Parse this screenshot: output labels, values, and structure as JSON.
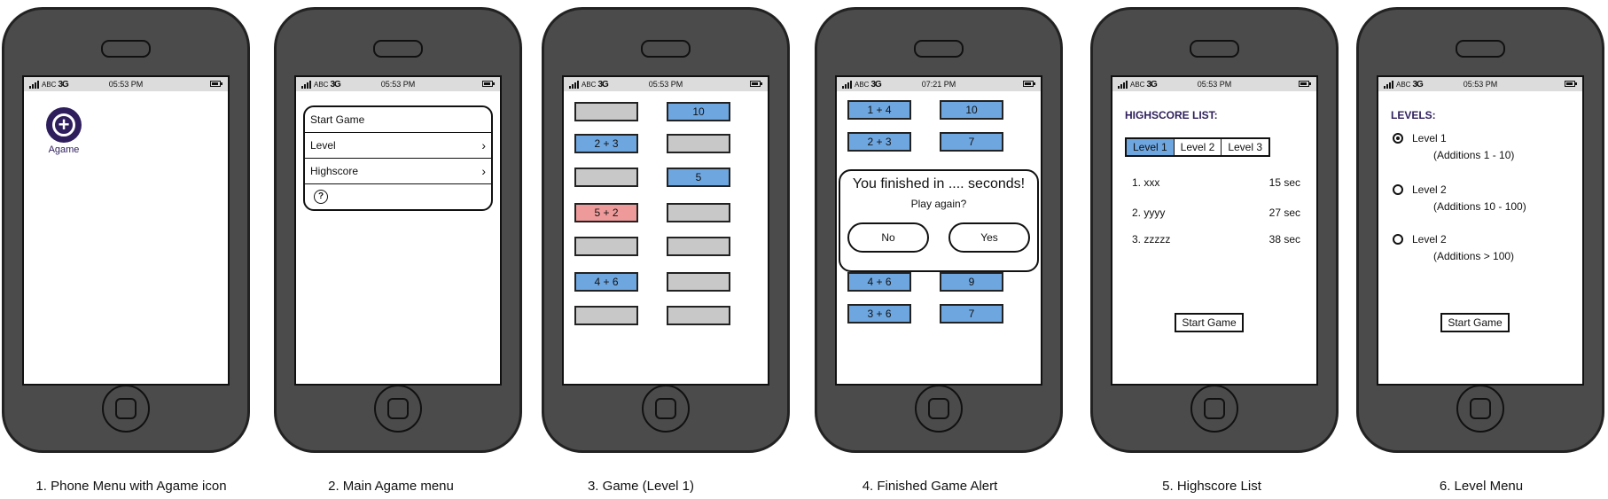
{
  "status_bar": {
    "carrier": "ABC",
    "network": "3G",
    "time_default": "05:53 PM",
    "time_alert": "07:21 PM"
  },
  "captions": [
    "1. Phone Menu with Agame icon",
    "2. Main Agame menu",
    "3. Game (Level 1)",
    "4. Finished Game Alert",
    "5. Highscore List",
    "6. Level Menu"
  ],
  "phone1": {
    "app_label": "Agame"
  },
  "phone2": {
    "menu_items": [
      {
        "label": "Start Game",
        "chevron": ""
      },
      {
        "label": "Level",
        "chevron": "›"
      },
      {
        "label": "Highscore",
        "chevron": "›"
      }
    ],
    "help_symbol": "?"
  },
  "phone3": {
    "tiles": [
      {
        "text": "",
        "color": "gray"
      },
      {
        "text": "10",
        "color": "blue"
      },
      {
        "text": "2 + 3",
        "color": "blue"
      },
      {
        "text": "",
        "color": "gray"
      },
      {
        "text": "",
        "color": "gray"
      },
      {
        "text": "5",
        "color": "blue"
      },
      {
        "text": "5 + 2",
        "color": "red"
      },
      {
        "text": "",
        "color": "gray"
      },
      {
        "text": "",
        "color": "gray"
      },
      {
        "text": "",
        "color": "gray"
      },
      {
        "text": "4 + 6",
        "color": "blue"
      },
      {
        "text": "",
        "color": "gray"
      },
      {
        "text": "",
        "color": "gray"
      },
      {
        "text": "",
        "color": "gray"
      }
    ]
  },
  "phone4": {
    "tiles_top": [
      {
        "text": "1 + 4",
        "color": "blue"
      },
      {
        "text": "10",
        "color": "blue"
      },
      {
        "text": "2 + 3",
        "color": "blue"
      },
      {
        "text": "7",
        "color": "blue"
      }
    ],
    "tiles_bottom": [
      {
        "text": "4 + 6",
        "color": "blue"
      },
      {
        "text": "9",
        "color": "blue"
      },
      {
        "text": "3 + 6",
        "color": "blue"
      },
      {
        "text": "7",
        "color": "blue"
      }
    ],
    "alert": {
      "title": "You finished in .... seconds!",
      "message": "Play again?",
      "no_label": "No",
      "yes_label": "Yes"
    }
  },
  "phone5": {
    "heading": "HIGHSCORE LIST:",
    "tabs": [
      "Level 1",
      "Level 2",
      "Level 3"
    ],
    "selected_tab": 0,
    "scores": [
      {
        "name": "1. xxx",
        "time": "15 sec"
      },
      {
        "name": "2. yyyy",
        "time": "27 sec"
      },
      {
        "name": "3. zzzzz",
        "time": "38 sec"
      }
    ],
    "start_button": "Start Game"
  },
  "phone6": {
    "heading": "LEVELS:",
    "levels": [
      {
        "label": "Level 1",
        "detail": "(Additions 1 - 10)",
        "selected": true
      },
      {
        "label": "Level 2",
        "detail": "(Additions 10 - 100)",
        "selected": false
      },
      {
        "label": "Level 2",
        "detail": "(Additions > 100)",
        "selected": false
      }
    ],
    "start_button": "Start Game"
  },
  "colors": {
    "phone_body": "#4b4b4b",
    "tile_blue": "#6ea6e0",
    "tile_gray": "#c8c8c8",
    "tile_red": "#ef9a9a",
    "accent_purple": "#2e1e5c"
  }
}
